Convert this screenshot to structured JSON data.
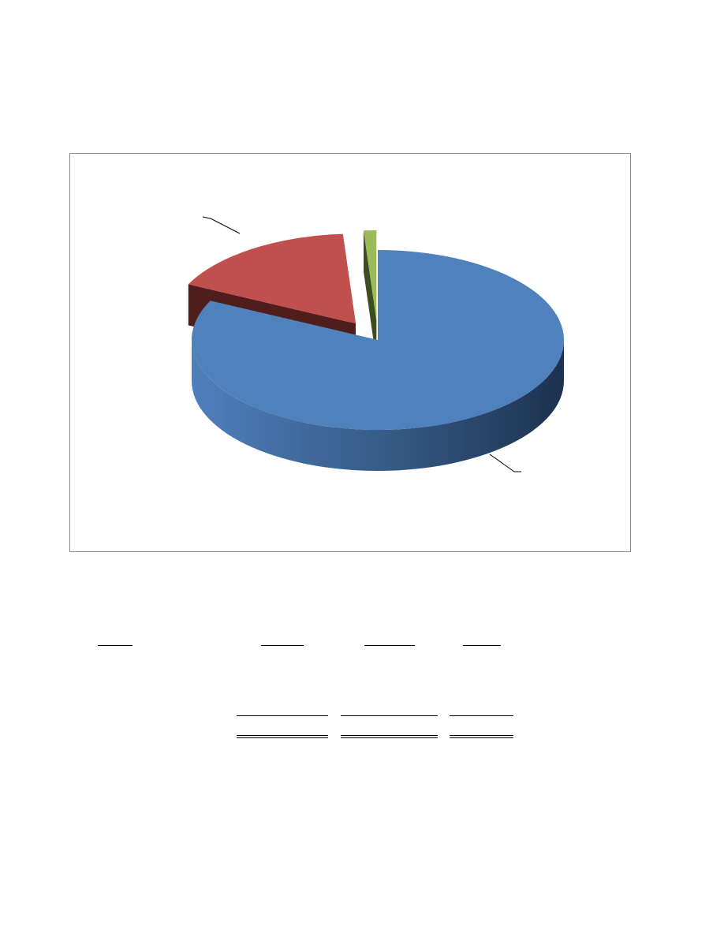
{
  "chart_data": {
    "type": "pie",
    "style": "3d-exploded",
    "labels_visible": false,
    "slices": [
      {
        "value": 82.2,
        "color": "#4f81bd",
        "dark": "#26405f"
      },
      {
        "value": 16.7,
        "color": "#c0504d",
        "dark": "#4e1d1c"
      },
      {
        "value": 1.1,
        "color": "#9bbb59",
        "dark": "#3d4d20"
      }
    ]
  },
  "table": {
    "header_underlines": 4,
    "subtotal_rules": 3,
    "total_double_rules": 3
  }
}
